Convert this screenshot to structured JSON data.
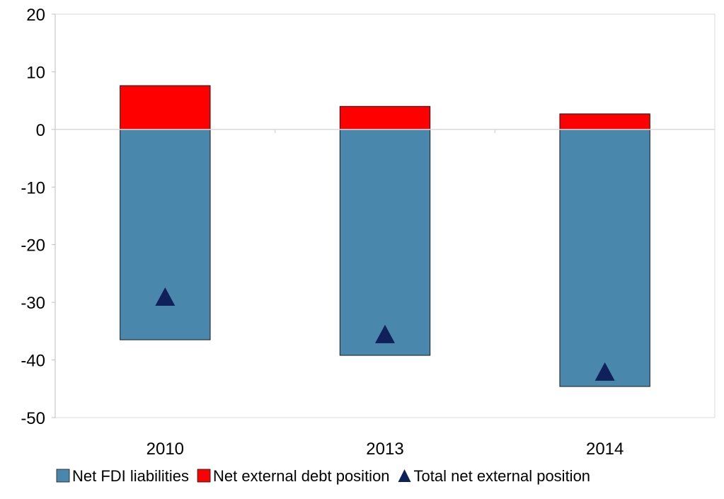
{
  "chart_data": {
    "type": "bar",
    "stacked": true,
    "categories": [
      "2010",
      "2013",
      "2014"
    ],
    "series": [
      {
        "name": "Net FDI liabilities",
        "kind": "bar",
        "color": "#4a87ad",
        "values": [
          -36.5,
          -39.2,
          -44.6
        ]
      },
      {
        "name": "Net external debt position",
        "kind": "bar",
        "color": "#ff0000",
        "values": [
          7.6,
          4.0,
          2.7
        ]
      },
      {
        "name": "Total net external position",
        "kind": "marker",
        "marker": "triangle",
        "color": "#10205a",
        "values": [
          -29.0,
          -35.5,
          -42.0
        ]
      }
    ],
    "ylim": [
      -50,
      20
    ],
    "yticks": [
      20,
      10,
      0,
      -10,
      -20,
      -30,
      -40,
      -50
    ],
    "ytick_labels": [
      "20",
      "10",
      "0",
      "-10",
      "-20",
      "-30",
      "-40",
      "-50"
    ],
    "grid": false,
    "legend_position": "bottom",
    "title": "",
    "xlabel": "",
    "ylabel": ""
  }
}
